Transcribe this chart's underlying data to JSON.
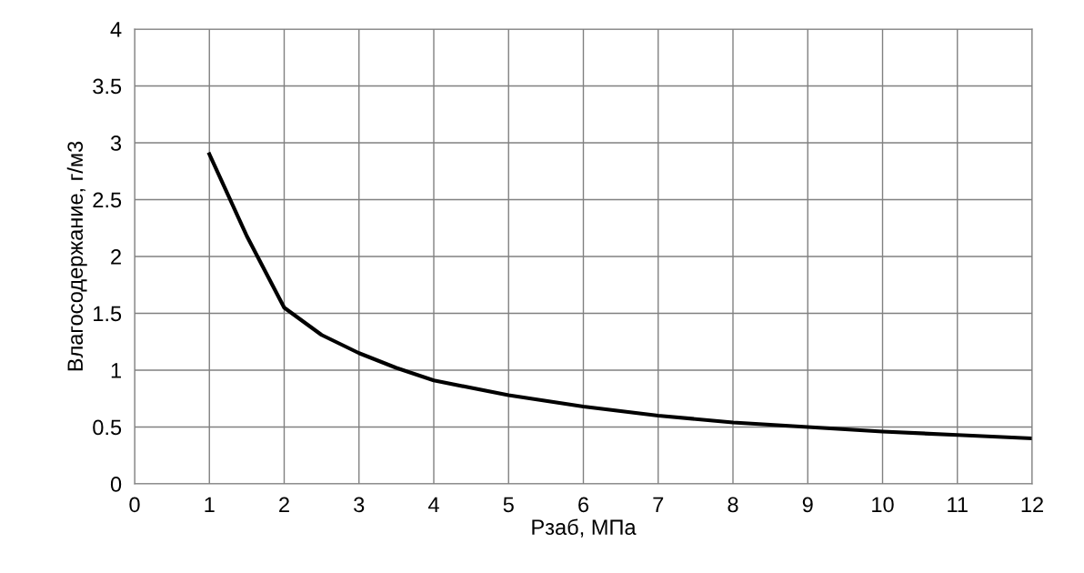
{
  "chart_data": {
    "type": "line",
    "xlabel": "Рзаб, МПа",
    "ylabel": "Влагосодержание, г/м3",
    "x": [
      1,
      1.5,
      2,
      2.5,
      3,
      3.5,
      4,
      5,
      6,
      7,
      8,
      9,
      10,
      11,
      12
    ],
    "series": [
      {
        "color": "#000000",
        "values": [
          2.9,
          2.18,
          1.55,
          1.31,
          1.15,
          1.02,
          0.91,
          0.78,
          0.68,
          0.6,
          0.54,
          0.5,
          0.46,
          0.43,
          0.4
        ]
      }
    ],
    "xlim": [
      0,
      12
    ],
    "xticks": [
      0,
      1,
      2,
      3,
      4,
      5,
      6,
      7,
      8,
      9,
      10,
      11,
      12
    ],
    "ylim": [
      0,
      4
    ],
    "yticks": [
      0,
      0.5,
      1,
      1.5,
      2,
      2.5,
      3,
      3.5,
      4
    ],
    "grid": true,
    "legend": false,
    "marker": "none",
    "line_style": "solid"
  }
}
